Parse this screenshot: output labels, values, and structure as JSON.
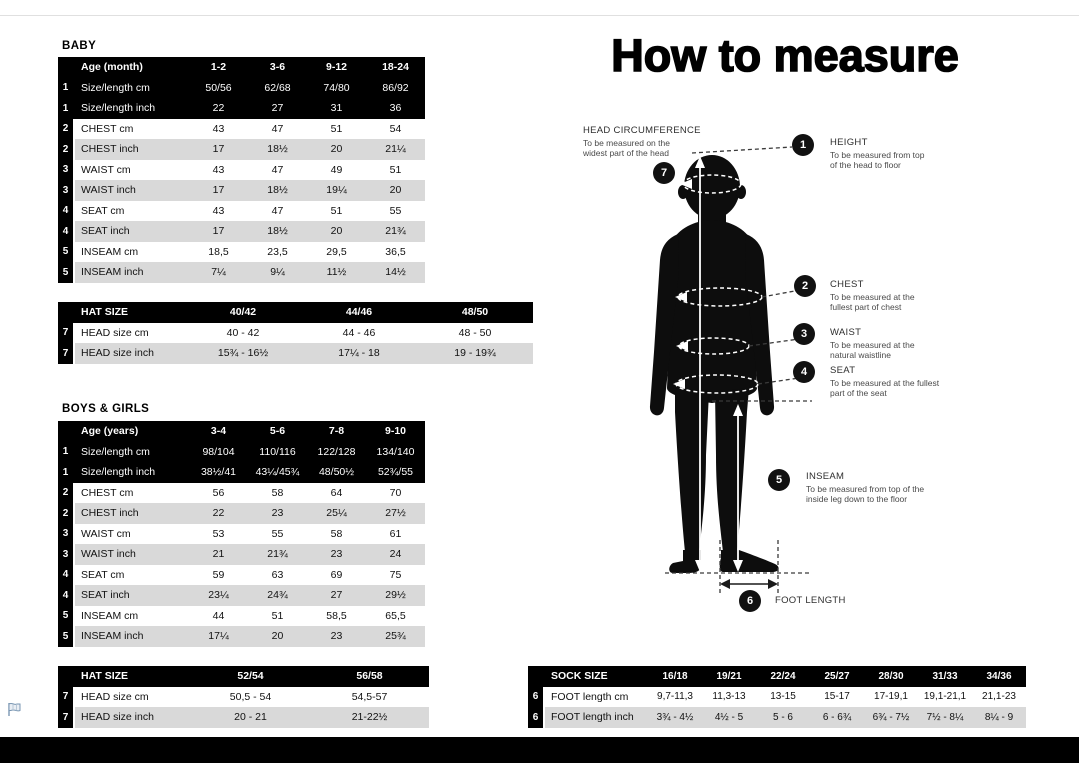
{
  "title": "How to measure",
  "tables": {
    "baby": {
      "heading": "BABY",
      "header": {
        "label": "Age (month)",
        "data": [
          "1-2",
          "3-6",
          "9-12",
          "18-24"
        ]
      },
      "rows": [
        {
          "num": "1",
          "label": "Size/length cm",
          "data": [
            "50/56",
            "62/68",
            "74/80",
            "86/92"
          ],
          "dark": true
        },
        {
          "num": "1",
          "label": "Size/length inch",
          "data": [
            "22",
            "27",
            "31",
            "36"
          ],
          "dark": true
        },
        {
          "num": "2",
          "label": "CHEST cm",
          "data": [
            "43",
            "47",
            "51",
            "54"
          ]
        },
        {
          "num": "2",
          "label": "CHEST inch",
          "data": [
            "17",
            "18½",
            "20",
            "21¼"
          ]
        },
        {
          "num": "3",
          "label": "WAIST cm",
          "data": [
            "43",
            "47",
            "49",
            "51"
          ]
        },
        {
          "num": "3",
          "label": "WAIST inch",
          "data": [
            "17",
            "18½",
            "19¼",
            "20"
          ]
        },
        {
          "num": "4",
          "label": "SEAT cm",
          "data": [
            "43",
            "47",
            "51",
            "55"
          ]
        },
        {
          "num": "4",
          "label": "SEAT inch",
          "data": [
            "17",
            "18½",
            "20",
            "21¾"
          ]
        },
        {
          "num": "5",
          "label": "INSEAM cm",
          "data": [
            "18,5",
            "23,5",
            "29,5",
            "36,5"
          ]
        },
        {
          "num": "5",
          "label": "INSEAM inch",
          "data": [
            "7¼",
            "9¼",
            "11½",
            "14½"
          ]
        }
      ]
    },
    "baby_hat": {
      "header": {
        "label": "HAT SIZE",
        "data": [
          "40/42",
          "44/46",
          "48/50"
        ]
      },
      "rows": [
        {
          "num": "7",
          "label": "HEAD size cm",
          "data": [
            "40 - 42",
            "44 - 46",
            "48 - 50"
          ]
        },
        {
          "num": "7",
          "label": "HEAD size inch",
          "data": [
            "15¾ - 16½",
            "17¼ - 18",
            "19 - 19¾"
          ]
        }
      ]
    },
    "kids": {
      "heading": "BOYS & GIRLS",
      "header": {
        "label": "Age (years)",
        "data": [
          "3-4",
          "5-6",
          "7-8",
          "9-10"
        ]
      },
      "rows": [
        {
          "num": "1",
          "label": "Size/length cm",
          "data": [
            "98/104",
            "110/116",
            "122/128",
            "134/140"
          ],
          "dark": true
        },
        {
          "num": "1",
          "label": "Size/length inch",
          "data": [
            "38½/41",
            "43¼/45¾",
            "48/50½",
            "52¾/55"
          ],
          "dark": true
        },
        {
          "num": "2",
          "label": "CHEST cm",
          "data": [
            "56",
            "58",
            "64",
            "70"
          ]
        },
        {
          "num": "2",
          "label": "CHEST inch",
          "data": [
            "22",
            "23",
            "25¼",
            "27½"
          ]
        },
        {
          "num": "3",
          "label": "WAIST cm",
          "data": [
            "53",
            "55",
            "58",
            "61"
          ]
        },
        {
          "num": "3",
          "label": "WAIST inch",
          "data": [
            "21",
            "21¾",
            "23",
            "24"
          ]
        },
        {
          "num": "4",
          "label": "SEAT cm",
          "data": [
            "59",
            "63",
            "69",
            "75"
          ]
        },
        {
          "num": "4",
          "label": "SEAT inch",
          "data": [
            "23¼",
            "24¾",
            "27",
            "29½"
          ]
        },
        {
          "num": "5",
          "label": "INSEAM cm",
          "data": [
            "44",
            "51",
            "58,5",
            "65,5"
          ]
        },
        {
          "num": "5",
          "label": "INSEAM inch",
          "data": [
            "17¼",
            "20",
            "23",
            "25¾"
          ]
        }
      ]
    },
    "kids_hat": {
      "header": {
        "label": "HAT SIZE",
        "data": [
          "52/54",
          "56/58"
        ]
      },
      "rows": [
        {
          "num": "7",
          "label": "HEAD size cm",
          "data": [
            "50,5 - 54",
            "54,5-57"
          ]
        },
        {
          "num": "7",
          "label": "HEAD size inch",
          "data": [
            "20 - 21",
            "21-22½"
          ]
        }
      ]
    },
    "sock": {
      "header": {
        "label": "SOCK SIZE",
        "data": [
          "16/18",
          "19/21",
          "22/24",
          "25/27",
          "28/30",
          "31/33",
          "34/36"
        ]
      },
      "rows": [
        {
          "num": "6",
          "label": "FOOT length cm",
          "data": [
            "9,7-11,3",
            "11,3-13",
            "13-15",
            "15-17",
            "17-19,1",
            "19,1-21,1",
            "21,1-23"
          ]
        },
        {
          "num": "6",
          "label": "FOOT length inch",
          "data": [
            "3¾ - 4½",
            "4½ - 5",
            "5 - 6",
            "6 - 6¾",
            "6¾ - 7½",
            "7½ - 8¼",
            "8¼ - 9"
          ]
        }
      ]
    }
  },
  "figure": {
    "head": {
      "num": "7",
      "title": "HEAD CIRCUMFERENCE",
      "line1": "To be measured on the",
      "line2": "widest part of the head"
    },
    "height": {
      "num": "1",
      "title": "HEIGHT",
      "line1": "To be measured from top",
      "line2": "of the head to floor"
    },
    "chest": {
      "num": "2",
      "title": "CHEST",
      "line1": "To be measured at the",
      "line2": "fullest part of chest"
    },
    "waist": {
      "num": "3",
      "title": "WAIST",
      "line1": "To be measured at the",
      "line2": "natural waistline"
    },
    "seat": {
      "num": "4",
      "title": "SEAT",
      "line1": "To be measured at the fullest",
      "line2": "part of the seat"
    },
    "inseam": {
      "num": "5",
      "title": "INSEAM",
      "line1": "To be measured from top of the",
      "line2": "inside leg down to the floor"
    },
    "foot": {
      "num": "6",
      "title": "FOOT LENGTH"
    }
  },
  "colors": {
    "table_header": "#000000",
    "row_stripe": "#d9d9d9",
    "figure": "#0d0d0d"
  }
}
